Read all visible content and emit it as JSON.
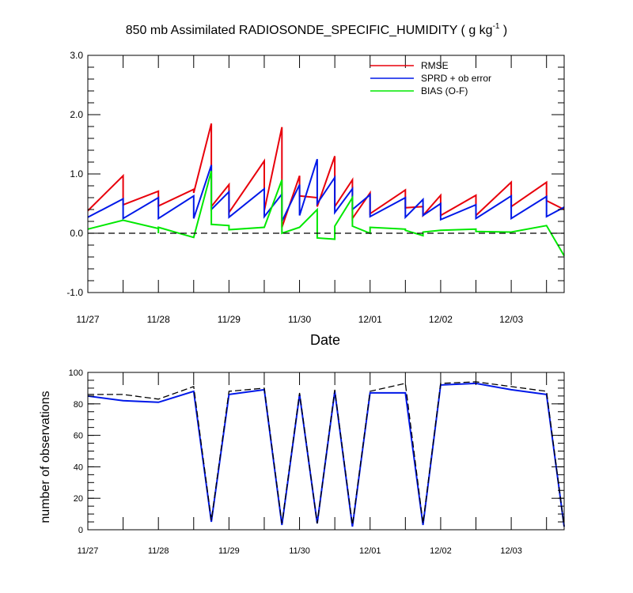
{
  "chart_data": [
    {
      "type": "line",
      "title_main": "850 mb Assimilated RADIOSONDE_SPECIFIC_HUMIDITY ( g kg",
      "title_sup": "-1",
      "title_end": " )",
      "xlabel": "Date",
      "ylabel": "",
      "ylim": [
        -1.0,
        3.0
      ],
      "xlim": [
        0,
        6.75
      ],
      "grid": false,
      "zero_line": "dashed",
      "legend_position": "top-right",
      "yticks": [
        {
          "value": -1.0,
          "label": "-1.0"
        },
        {
          "value": 0.0,
          "label": "0.0"
        },
        {
          "value": 1.0,
          "label": "1.0"
        },
        {
          "value": 2.0,
          "label": "2.0"
        },
        {
          "value": 3.0,
          "label": "3.0"
        }
      ],
      "xticks": [
        {
          "value": 0,
          "label": "11/27"
        },
        {
          "value": 1,
          "label": "11/28"
        },
        {
          "value": 2,
          "label": "11/29"
        },
        {
          "value": 3,
          "label": "11/30"
        },
        {
          "value": 4,
          "label": "12/01"
        },
        {
          "value": 5,
          "label": "12/02"
        },
        {
          "value": 6,
          "label": "12/03"
        }
      ],
      "series": [
        {
          "name": "RMSE",
          "color": "#e8000b",
          "points": [
            [
              0,
              0.38
            ],
            [
              0.5,
              0.97
            ],
            [
              0.5,
              0.48
            ],
            [
              1,
              0.71
            ],
            [
              1,
              0.46
            ],
            [
              1.5,
              0.74
            ],
            [
              1.5,
              0.68
            ],
            [
              1.75,
              1.85
            ],
            [
              1.75,
              0.45
            ],
            [
              2,
              0.82
            ],
            [
              2,
              0.35
            ],
            [
              2.5,
              1.22
            ],
            [
              2.5,
              0.38
            ],
            [
              2.75,
              1.79
            ],
            [
              2.75,
              0.1
            ],
            [
              3,
              0.97
            ],
            [
              3,
              0.63
            ],
            [
              3.25,
              0.6
            ],
            [
              3.25,
              0.45
            ],
            [
              3.5,
              1.3
            ],
            [
              3.5,
              0.45
            ],
            [
              3.75,
              0.9
            ],
            [
              3.75,
              0.25
            ],
            [
              4,
              0.68
            ],
            [
              4,
              0.33
            ],
            [
              4.5,
              0.73
            ],
            [
              4.5,
              0.43
            ],
            [
              4.75,
              0.45
            ],
            [
              4.75,
              0.3
            ],
            [
              5,
              0.64
            ],
            [
              5,
              0.3
            ],
            [
              5.5,
              0.64
            ],
            [
              5.5,
              0.3
            ],
            [
              6,
              0.86
            ],
            [
              6,
              0.45
            ],
            [
              6.5,
              0.86
            ],
            [
              6.5,
              0.55
            ],
            [
              6.75,
              0.4
            ]
          ]
        },
        {
          "name": "SPRD + ob error",
          "color": "#0018e8",
          "points": [
            [
              0,
              0.27
            ],
            [
              0.5,
              0.58
            ],
            [
              0.5,
              0.25
            ],
            [
              1,
              0.6
            ],
            [
              1,
              0.25
            ],
            [
              1.5,
              0.63
            ],
            [
              1.5,
              0.25
            ],
            [
              1.75,
              1.15
            ],
            [
              1.75,
              0.4
            ],
            [
              2,
              0.7
            ],
            [
              2,
              0.27
            ],
            [
              2.5,
              0.75
            ],
            [
              2.5,
              0.28
            ],
            [
              2.75,
              0.66
            ],
            [
              2.75,
              0.2
            ],
            [
              3,
              0.82
            ],
            [
              3,
              0.3
            ],
            [
              3.25,
              1.25
            ],
            [
              3.25,
              0.5
            ],
            [
              3.5,
              0.94
            ],
            [
              3.5,
              0.35
            ],
            [
              3.75,
              0.75
            ],
            [
              3.75,
              0.4
            ],
            [
              4,
              0.65
            ],
            [
              4,
              0.28
            ],
            [
              4.5,
              0.6
            ],
            [
              4.5,
              0.27
            ],
            [
              4.75,
              0.57
            ],
            [
              4.75,
              0.3
            ],
            [
              5,
              0.5
            ],
            [
              5,
              0.23
            ],
            [
              5.5,
              0.48
            ],
            [
              5.5,
              0.25
            ],
            [
              6,
              0.63
            ],
            [
              6,
              0.25
            ],
            [
              6.5,
              0.62
            ],
            [
              6.5,
              0.28
            ],
            [
              6.75,
              0.44
            ]
          ]
        },
        {
          "name": "BIAS (O-F)",
          "color": "#00e800",
          "points": [
            [
              0,
              0.07
            ],
            [
              0.5,
              0.22
            ],
            [
              1,
              0.08
            ],
            [
              1,
              0.0
            ],
            [
              1,
              0.1
            ],
            [
              1.5,
              -0.07
            ],
            [
              1.75,
              1.05
            ],
            [
              1.75,
              0.15
            ],
            [
              2,
              0.13
            ],
            [
              2,
              0.06
            ],
            [
              2.5,
              0.1
            ],
            [
              2.75,
              0.9
            ],
            [
              2.75,
              0.0
            ],
            [
              3,
              0.1
            ],
            [
              3.25,
              0.4
            ],
            [
              3.25,
              -0.08
            ],
            [
              3.5,
              -0.1
            ],
            [
              3.5,
              0.12
            ],
            [
              3.75,
              0.6
            ],
            [
              3.75,
              0.12
            ],
            [
              4,
              0.0
            ],
            [
              4,
              0.1
            ],
            [
              4.5,
              0.07
            ],
            [
              4.5,
              0.05
            ],
            [
              4.75,
              -0.04
            ],
            [
              4.75,
              0.02
            ],
            [
              5,
              0.05
            ],
            [
              5.5,
              0.07
            ],
            [
              5.5,
              0.03
            ],
            [
              6,
              0.02
            ],
            [
              6.5,
              0.13
            ],
            [
              6.75,
              -0.38
            ]
          ]
        }
      ]
    },
    {
      "type": "line",
      "title": "",
      "xlabel": "",
      "ylabel": "number of observations",
      "ylim": [
        0,
        100
      ],
      "xlim": [
        0,
        6.75
      ],
      "grid": false,
      "yticks": [
        {
          "value": 0,
          "label": "0"
        },
        {
          "value": 20,
          "label": "20"
        },
        {
          "value": 40,
          "label": "40"
        },
        {
          "value": 60,
          "label": "60"
        },
        {
          "value": 80,
          "label": "80"
        },
        {
          "value": 100,
          "label": "100"
        }
      ],
      "xticks": [
        {
          "value": 0,
          "label": "11/27"
        },
        {
          "value": 1,
          "label": "11/28"
        },
        {
          "value": 2,
          "label": "11/29"
        },
        {
          "value": 3,
          "label": "11/30"
        },
        {
          "value": 4,
          "label": "12/01"
        },
        {
          "value": 5,
          "label": "12/02"
        },
        {
          "value": 6,
          "label": "12/03"
        }
      ],
      "series": [
        {
          "color": "#0018e8",
          "style": "solid",
          "points": [
            [
              0,
              85
            ],
            [
              0.5,
              82
            ],
            [
              1,
              81
            ],
            [
              1.5,
              88
            ],
            [
              1.75,
              5
            ],
            [
              2,
              86
            ],
            [
              2.5,
              89
            ],
            [
              2.75,
              3
            ],
            [
              3,
              86
            ],
            [
              3.25,
              4
            ],
            [
              3.5,
              88
            ],
            [
              3.75,
              2
            ],
            [
              4,
              87
            ],
            [
              4.5,
              87
            ],
            [
              4.75,
              3
            ],
            [
              5,
              92
            ],
            [
              5.5,
              93
            ],
            [
              6,
              89
            ],
            [
              6.5,
              86
            ],
            [
              6.75,
              2
            ]
          ]
        },
        {
          "color": "#000000",
          "style": "dashed",
          "points": [
            [
              0,
              86
            ],
            [
              0.5,
              86
            ],
            [
              1,
              83
            ],
            [
              1.5,
              91
            ],
            [
              1.75,
              6
            ],
            [
              2,
              88
            ],
            [
              2.5,
              90
            ],
            [
              2.75,
              4
            ],
            [
              3,
              87
            ],
            [
              3.25,
              4
            ],
            [
              3.5,
              89
            ],
            [
              3.75,
              3
            ],
            [
              4,
              88
            ],
            [
              4.5,
              93
            ],
            [
              4.75,
              4
            ],
            [
              5,
              93
            ],
            [
              5.5,
              94
            ],
            [
              6,
              91
            ],
            [
              6.5,
              88
            ],
            [
              6.75,
              2
            ]
          ]
        }
      ]
    }
  ]
}
